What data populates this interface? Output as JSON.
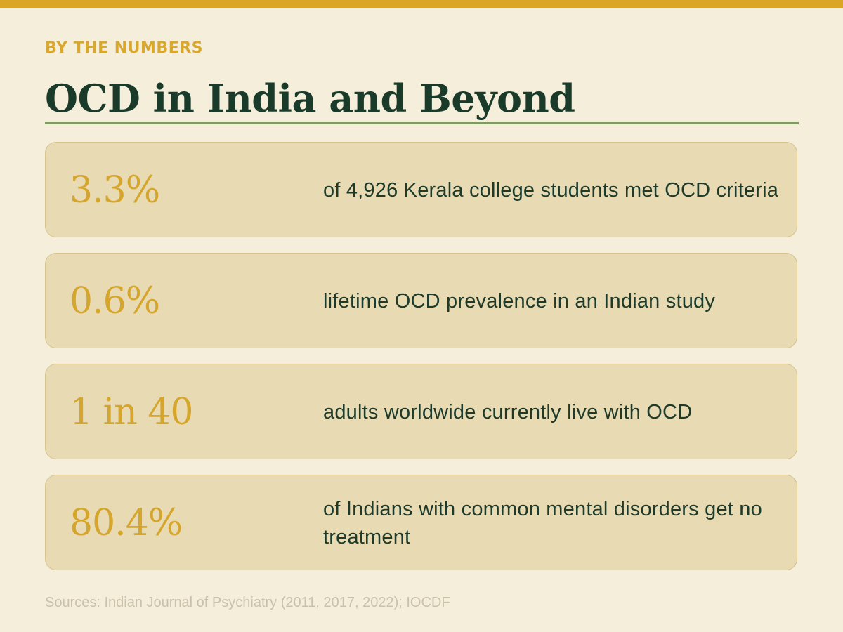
{
  "header": {
    "eyebrow": "BY THE NUMBERS",
    "title": "OCD in India and Beyond"
  },
  "stats": [
    {
      "value": "3.3%",
      "description": "of 4,926 Kerala college students met OCD criteria"
    },
    {
      "value": "0.6%",
      "description": "lifetime OCD prevalence in an Indian study"
    },
    {
      "value": "1 in 40",
      "description": "adults worldwide currently live with OCD"
    },
    {
      "value": "80.4%",
      "description": "of Indians with common mental disorders get no treatment"
    }
  ],
  "footer": {
    "sources": "Sources: Indian Journal of Psychiatry (2011, 2017, 2022); IOCDF"
  },
  "colors": {
    "background": "#f5eedb",
    "accent": "#dba623",
    "card": "#e8dbb4",
    "heading": "#1a3a2a",
    "rule": "#7f9b60"
  }
}
